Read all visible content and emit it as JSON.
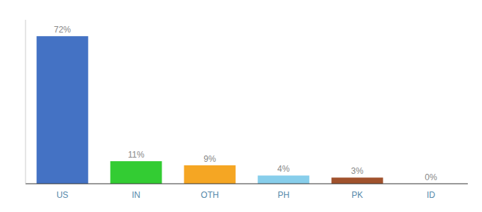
{
  "chart_data": {
    "type": "bar",
    "categories": [
      "US",
      "IN",
      "OTH",
      "PH",
      "PK",
      "ID"
    ],
    "values": [
      72,
      11,
      9,
      4,
      3,
      0
    ],
    "value_labels": [
      "72%",
      "11%",
      "9%",
      "4%",
      "3%",
      "0%"
    ],
    "colors": [
      "#4472c4",
      "#33cc33",
      "#f5a623",
      "#87ceeb",
      "#a0522d",
      "#cccccc"
    ],
    "ylim": [
      0,
      80
    ],
    "grid": false,
    "data_labels": true,
    "tick_labels": "x"
  }
}
